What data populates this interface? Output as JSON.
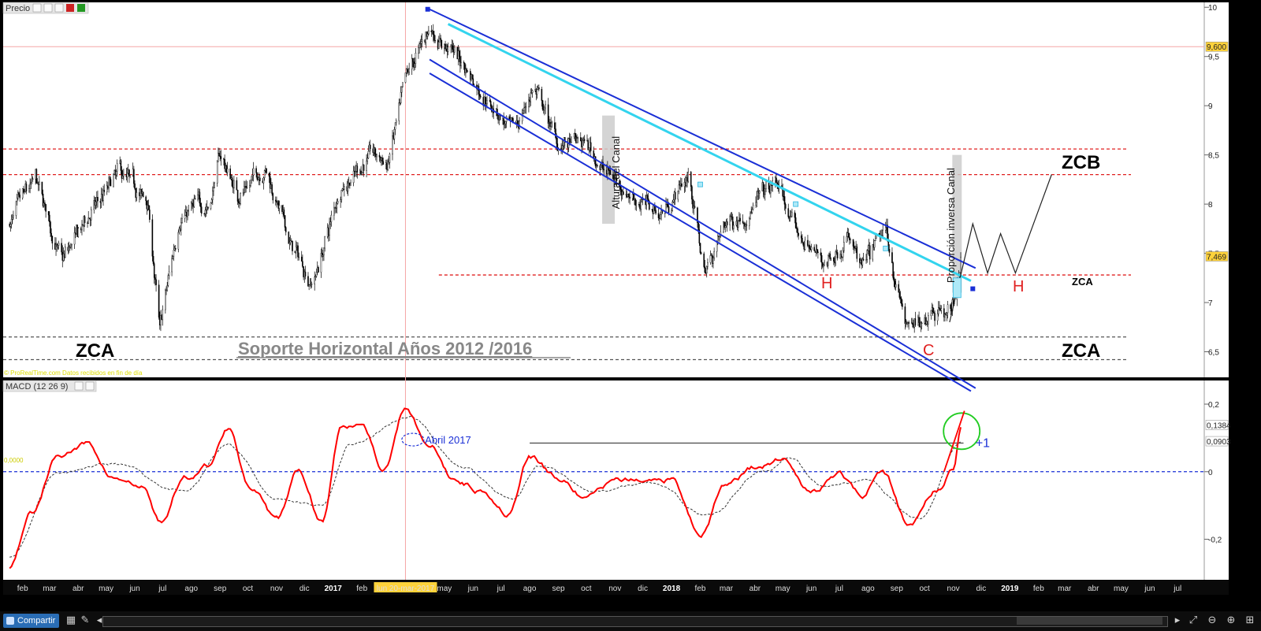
{
  "price_panel": {
    "label": "Precio",
    "grid_values": [
      10,
      9.5,
      9,
      8.5,
      8,
      7.5,
      7,
      6.5
    ],
    "y_labels": [
      "10",
      "9,5",
      "9",
      "8,5",
      "8",
      "7,5",
      "7",
      "6,5"
    ],
    "current_price_label": "7,469",
    "line_price_label": "9,600",
    "watermark": "© ProRealTime.com  Datos recibidos en fin de día"
  },
  "macd_panel": {
    "label": "MACD (12 26 9)",
    "grid_values": [
      0.2,
      0,
      -0.2
    ],
    "y_labels": [
      "0,2",
      "0",
      "-0,2"
    ],
    "macd_label": "0,1384",
    "signal_label": "0,0903",
    "zero_label": "0,0000"
  },
  "x_axis": {
    "labels": [
      {
        "t": "feb",
        "bold": false
      },
      {
        "t": "mar",
        "bold": false
      },
      {
        "t": "abr",
        "bold": false
      },
      {
        "t": "may",
        "bold": false
      },
      {
        "t": "jun",
        "bold": false
      },
      {
        "t": "jul",
        "bold": false
      },
      {
        "t": "ago",
        "bold": false
      },
      {
        "t": "sep",
        "bold": false
      },
      {
        "t": "oct",
        "bold": false
      },
      {
        "t": "nov",
        "bold": false
      },
      {
        "t": "dic",
        "bold": false
      },
      {
        "t": "2017",
        "bold": true
      },
      {
        "t": "feb",
        "bold": false
      },
      {
        "t": "mar",
        "bold": false
      },
      {
        "t": "abr",
        "bold": false
      },
      {
        "t": "may",
        "bold": false
      },
      {
        "t": "jun",
        "bold": false
      },
      {
        "t": "jul",
        "bold": false
      },
      {
        "t": "ago",
        "bold": false
      },
      {
        "t": "sep",
        "bold": false
      },
      {
        "t": "oct",
        "bold": false
      },
      {
        "t": "nov",
        "bold": false
      },
      {
        "t": "dic",
        "bold": false
      },
      {
        "t": "2018",
        "bold": true
      },
      {
        "t": "feb",
        "bold": false
      },
      {
        "t": "mar",
        "bold": false
      },
      {
        "t": "abr",
        "bold": false
      },
      {
        "t": "may",
        "bold": false
      },
      {
        "t": "jun",
        "bold": false
      },
      {
        "t": "jul",
        "bold": false
      },
      {
        "t": "ago",
        "bold": false
      },
      {
        "t": "sep",
        "bold": false
      },
      {
        "t": "oct",
        "bold": false
      },
      {
        "t": "nov",
        "bold": false
      },
      {
        "t": "dic",
        "bold": false
      },
      {
        "t": "2019",
        "bold": true
      },
      {
        "t": "feb",
        "bold": false
      },
      {
        "t": "mar",
        "bold": false
      },
      {
        "t": "abr",
        "bold": false
      },
      {
        "t": "may",
        "bold": false
      },
      {
        "t": "jun",
        "bold": false
      },
      {
        "t": "jul",
        "bold": false
      }
    ],
    "cursor_label": "lun 20-mar-2017"
  },
  "chart_data": {
    "type": "line",
    "series": [
      {
        "name": "Precio",
        "x": [
          "2016-01-18",
          "2016-02-15",
          "2016-03-15",
          "2016-04-15",
          "2016-05-15",
          "2016-06-15",
          "2016-06-28",
          "2016-07-20",
          "2016-08-20",
          "2016-09-01",
          "2016-09-20",
          "2016-10-20",
          "2016-11-15",
          "2016-12-10",
          "2016-12-20",
          "2017-01-10",
          "2017-02-10",
          "2017-03-01",
          "2017-03-20",
          "2017-04-15",
          "2017-05-15",
          "2017-06-15",
          "2017-07-15",
          "2017-08-05",
          "2017-09-01",
          "2017-10-01",
          "2017-10-25",
          "2017-11-20",
          "2017-12-20",
          "2018-01-20",
          "2018-02-05",
          "2018-03-01",
          "2018-04-01",
          "2018-04-25",
          "2018-05-15",
          "2018-06-15",
          "2018-07-10",
          "2018-07-25",
          "2018-08-20",
          "2018-09-10",
          "2018-09-20",
          "2018-10-10",
          "2018-10-30",
          "2018-11-10"
        ],
        "values": [
          7.8,
          8.2,
          7.4,
          7.9,
          8.3,
          8.0,
          6.7,
          7.9,
          8.0,
          8.5,
          8.1,
          8.4,
          7.6,
          7.2,
          7.5,
          8.2,
          8.5,
          8.4,
          9.2,
          9.8,
          9.5,
          9.1,
          8.7,
          9.2,
          8.6,
          8.6,
          8.3,
          8.1,
          7.9,
          8.3,
          7.3,
          7.8,
          8.0,
          8.2,
          7.7,
          7.4,
          7.7,
          7.3,
          7.7,
          6.8,
          6.7,
          7.0,
          6.9,
          7.5
        ]
      },
      {
        "name": "MACD",
        "x": [
          "2016-01-18",
          "2016-02-10",
          "2016-03-10",
          "2016-04-10",
          "2016-05-10",
          "2016-06-10",
          "2016-06-28",
          "2016-07-25",
          "2016-08-20",
          "2016-09-10",
          "2016-10-05",
          "2016-11-01",
          "2016-11-25",
          "2016-12-20",
          "2017-01-10",
          "2017-02-01",
          "2017-02-25",
          "2017-03-20",
          "2017-04-15",
          "2017-05-10",
          "2017-06-10",
          "2017-07-10",
          "2017-08-01",
          "2017-09-01",
          "2017-10-01",
          "2017-11-01",
          "2017-12-01",
          "2018-01-01",
          "2018-02-01",
          "2018-03-01",
          "2018-04-01",
          "2018-05-01",
          "2018-06-01",
          "2018-07-01",
          "2018-07-25",
          "2018-08-15",
          "2018-09-15",
          "2018-10-15",
          "2018-11-01",
          "2018-11-10"
        ],
        "values": [
          -0.28,
          -0.12,
          0.05,
          0.08,
          -0.02,
          -0.05,
          -0.15,
          -0.02,
          0.02,
          0.13,
          -0.05,
          -0.15,
          0.0,
          -0.14,
          0.13,
          0.15,
          0.01,
          0.19,
          0.08,
          -0.02,
          -0.05,
          -0.12,
          0.04,
          -0.02,
          -0.08,
          -0.03,
          -0.03,
          -0.02,
          -0.18,
          -0.04,
          0.01,
          0.04,
          -0.06,
          -0.01,
          -0.07,
          0.01,
          -0.16,
          -0.05,
          0.01,
          0.14
        ]
      },
      {
        "name": "Señal",
        "x": [
          "2016-01-18",
          "2016-03-10",
          "2016-05-10",
          "2016-07-25",
          "2016-09-10",
          "2016-11-01",
          "2016-12-20",
          "2017-01-20",
          "2017-03-25",
          "2017-05-20",
          "2017-07-15",
          "2017-08-10",
          "2017-10-10",
          "2017-12-10",
          "2018-02-10",
          "2018-04-10",
          "2018-05-10",
          "2018-06-10",
          "2018-07-30",
          "2018-09-25",
          "2018-11-10"
        ],
        "values": [
          -0.25,
          0.0,
          0.02,
          -0.06,
          0.08,
          -0.08,
          -0.1,
          0.08,
          0.16,
          0.01,
          -0.08,
          0.02,
          -0.06,
          -0.03,
          -0.13,
          0.0,
          0.04,
          -0.04,
          -0.03,
          -0.14,
          0.09
        ]
      }
    ],
    "annotations": {
      "channel_label": "Altura del Canal",
      "inverse_label": "Proporción inversa Canal",
      "support_text": "Soporte Horizontal Años  2012 /2016",
      "zca_left": "ZCA",
      "zca_right_low": "ZCA",
      "zca_mid": "ZCA",
      "zcb": "ZCB",
      "h1": "H",
      "h2": "H",
      "c": "C",
      "abril_label": "Abril 2017",
      "plus_one": "+1"
    },
    "levels": {
      "red_upper": 8.56,
      "red_lower": 8.3,
      "red_mid": 7.28,
      "gray_upper": 6.65,
      "gray_lower": 6.42,
      "pink": 9.6
    },
    "ylim_price": [
      6.24,
      10.05
    ],
    "ylim_macd": [
      -0.32,
      0.27
    ]
  },
  "colors": {
    "candle": "#000000",
    "macd": "#ff0000",
    "signal": "#333333",
    "channel": "#1a2fd6",
    "trendline": "#33d4ee",
    "level_red": "#e02020",
    "level_gray": "#555555",
    "zero_line": "#1a2fd6",
    "circle": "#22cc22",
    "highlight": "#cccccc"
  },
  "bottom_bar": {
    "share_label": "Compartir"
  }
}
